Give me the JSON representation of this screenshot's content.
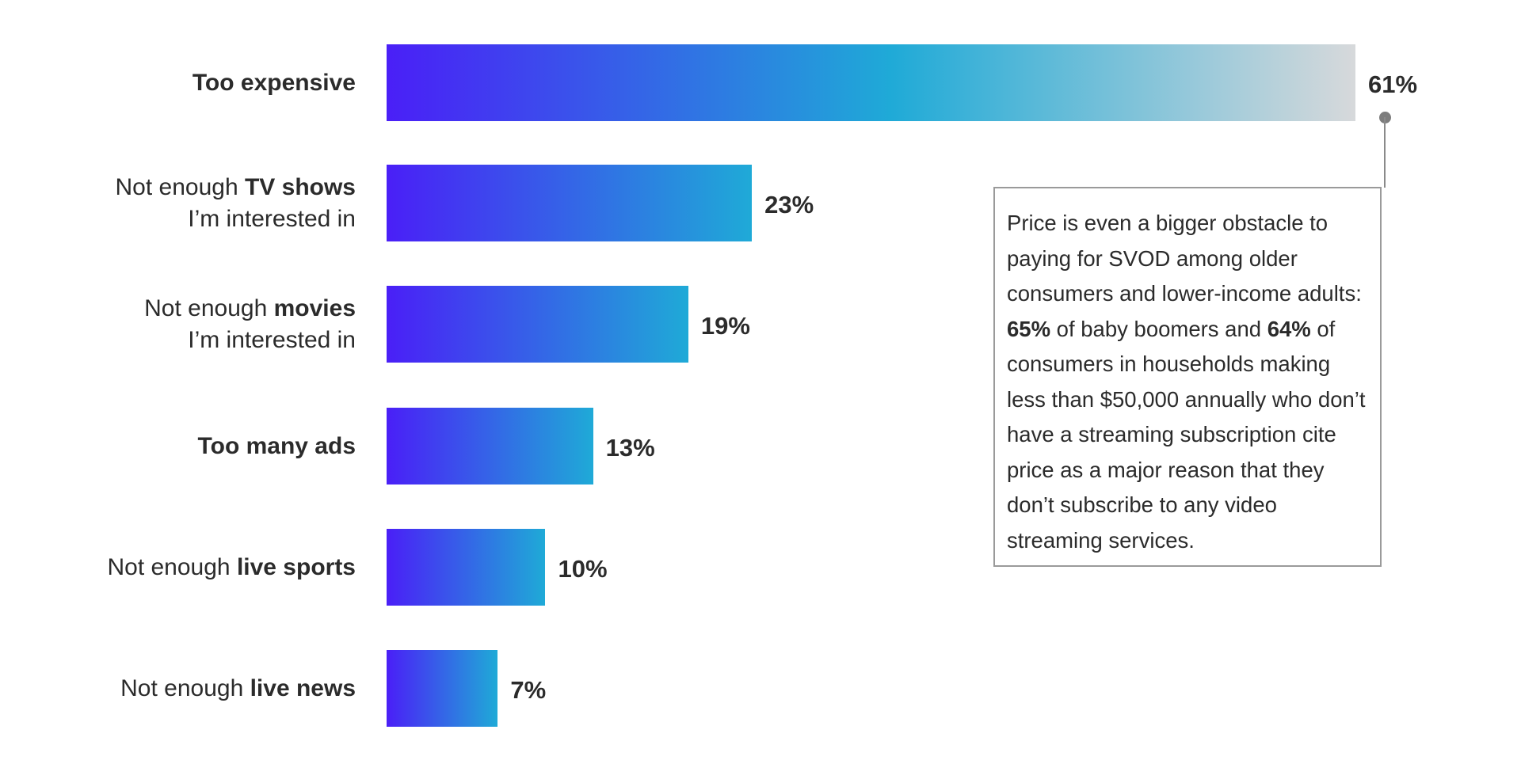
{
  "chart_data": {
    "type": "bar",
    "orientation": "horizontal",
    "categories": [
      {
        "parts": [
          {
            "text": "Too expensive",
            "bold": true
          }
        ]
      },
      {
        "parts": [
          {
            "text": "Not enough ",
            "bold": false
          },
          {
            "text": "TV shows",
            "bold": true
          },
          {
            "text": "\nI’m interested in",
            "bold": false
          }
        ]
      },
      {
        "parts": [
          {
            "text": "Not enough ",
            "bold": false
          },
          {
            "text": "movies",
            "bold": true
          },
          {
            "text": "\nI’m interested in",
            "bold": false
          }
        ]
      },
      {
        "parts": [
          {
            "text": "Too many ads",
            "bold": true
          }
        ]
      },
      {
        "parts": [
          {
            "text": "Not enough ",
            "bold": false
          },
          {
            "text": "live sports",
            "bold": true
          }
        ]
      },
      {
        "parts": [
          {
            "text": "Not enough ",
            "bold": false
          },
          {
            "text": "live news",
            "bold": true
          }
        ]
      }
    ],
    "values": [
      61,
      23,
      19,
      13,
      10,
      7
    ],
    "value_labels": [
      "61%",
      "23%",
      "19%",
      "13%",
      "10%",
      "7%"
    ],
    "value_suffix": "%",
    "gradient_colors": {
      "start": "#4a1ff7",
      "mid": "#1faad7",
      "end": "#d7d9db"
    },
    "annotation": {
      "attached_to": "Too expensive",
      "parts": [
        {
          "text": "Price is even a bigger obstacle to paying for SVOD among older consumers and lower-income adults: ",
          "bold": false
        },
        {
          "text": "65%",
          "bold": true
        },
        {
          "text": " of baby boomers and ",
          "bold": false
        },
        {
          "text": "64%",
          "bold": true
        },
        {
          "text": " of consumers in households making less than $50,000 annually who don’t have a streaming subscription cite price as a major reason that they don’t subscribe to any video streaming services.",
          "bold": false
        }
      ]
    }
  }
}
